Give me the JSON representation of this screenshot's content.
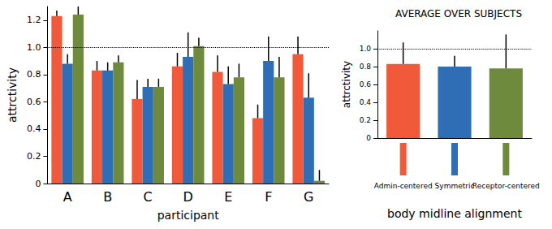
{
  "chart_data": [
    {
      "type": "bar",
      "x_label": "participant",
      "y_label": "attrctivity",
      "categories": [
        "A",
        "B",
        "C",
        "D",
        "E",
        "F",
        "G"
      ],
      "series": [
        {
          "color": "#f05a3a",
          "values": [
            1.23,
            0.83,
            0.62,
            0.86,
            0.82,
            0.48,
            0.95
          ],
          "errors": [
            0.04,
            0.07,
            0.14,
            0.1,
            0.12,
            0.1,
            0.13
          ]
        },
        {
          "color": "#2f6db5",
          "values": [
            0.88,
            0.83,
            0.71,
            0.93,
            0.73,
            0.9,
            0.63
          ],
          "errors": [
            0.07,
            0.06,
            0.06,
            0.18,
            0.13,
            0.18,
            0.18
          ]
        },
        {
          "color": "#6e8a3c",
          "values": [
            1.24,
            0.89,
            0.71,
            1.01,
            0.78,
            0.78,
            0.02
          ],
          "errors": [
            0.1,
            0.05,
            0.06,
            0.06,
            0.1,
            0.15,
            0.08
          ]
        }
      ],
      "ylim": [
        0,
        1.3
      ],
      "yticks": [
        0,
        0.2,
        0.4,
        0.6,
        0.8,
        {
          "value": 1,
          "label": "1.0"
        },
        1.2
      ],
      "hline": 1,
      "grid": false
    },
    {
      "type": "bar",
      "title": "AVERAGE OVER SUBJECTS",
      "x_label": "body midline alignment",
      "y_label": "attrctivity",
      "categories": [
        "Admin-centered",
        "Symmetric",
        "Receptor-centered"
      ],
      "values": [
        0.83,
        0.8,
        0.78
      ],
      "errors": [
        0.24,
        0.12,
        0.38
      ],
      "colors": [
        "#f05a3a",
        "#2f6db5",
        "#6e8a3c"
      ],
      "ylim": [
        0,
        1.2
      ],
      "yticks": [
        0,
        0.2,
        0.4,
        0.6,
        0.8,
        {
          "value": 1,
          "label": "1.0"
        }
      ],
      "hline": 1,
      "grid": false
    }
  ]
}
